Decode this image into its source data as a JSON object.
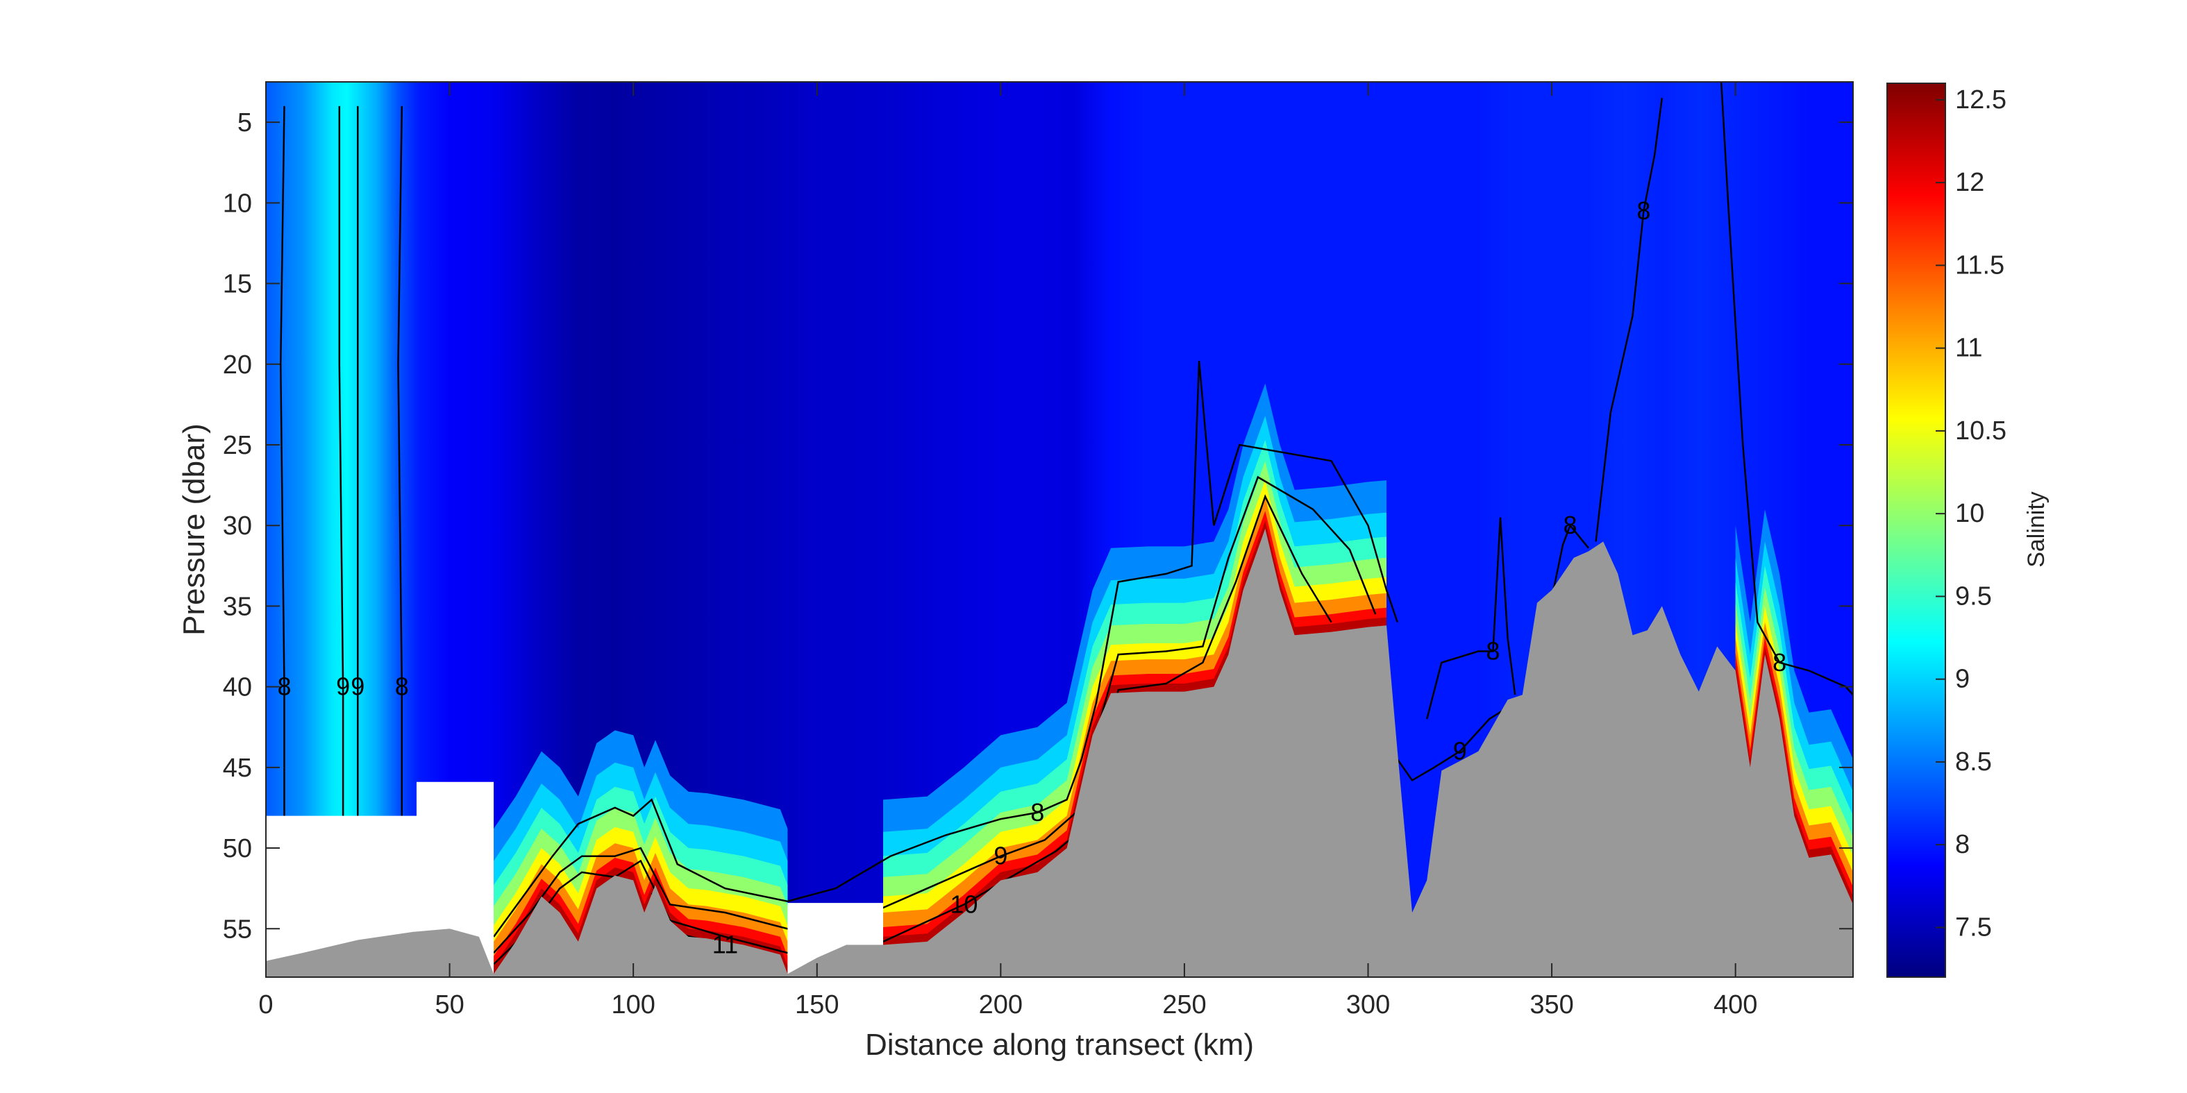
{
  "chart_data": {
    "type": "heatmap",
    "title": "",
    "xlabel": "Distance along transect (km)",
    "ylabel": "Pressure (dbar)",
    "colorbar_label": "Salinity",
    "colormap": "jet",
    "xlim": [
      0,
      432
    ],
    "ylim": [
      58,
      2.5
    ],
    "x_ticks": [
      0,
      50,
      100,
      150,
      200,
      250,
      300,
      350,
      400
    ],
    "y_ticks": [
      5,
      10,
      15,
      20,
      25,
      30,
      35,
      40,
      45,
      50,
      55
    ],
    "clim": [
      7.2,
      12.6
    ],
    "cbar_ticks": [
      "7.5",
      "8",
      "8.5",
      "9",
      "9.5",
      "10",
      "10.5",
      "11",
      "11.5",
      "12",
      "12.5"
    ],
    "grid": false,
    "bottom_fill_color": "#999999",
    "surface_profile": {
      "x": [
        0,
        10,
        18,
        22,
        30,
        36,
        42,
        50,
        62,
        75,
        85,
        95,
        105,
        115,
        125,
        135,
        142,
        150,
        160,
        170,
        180,
        190,
        200,
        210,
        220,
        230,
        240,
        250,
        260,
        265,
        270,
        280,
        290,
        300,
        305,
        312,
        320,
        330,
        340,
        350,
        360,
        370,
        380,
        390,
        400,
        410,
        420,
        432
      ],
      "salinity": [
        8.35,
        8.65,
        9.1,
        9.2,
        8.8,
        8.3,
        8.0,
        7.85,
        7.8,
        7.55,
        7.4,
        7.38,
        7.42,
        7.45,
        7.5,
        7.52,
        7.55,
        7.6,
        7.6,
        7.62,
        7.65,
        7.7,
        7.72,
        7.72,
        7.7,
        7.95,
        8.0,
        8.0,
        8.0,
        8.0,
        8.0,
        8.0,
        8.0,
        8.0,
        8.0,
        8.0,
        8.0,
        8.0,
        8.05,
        8.05,
        8.05,
        8.1,
        8.05,
        8.1,
        8.05,
        8.0,
        7.95,
        7.95
      ]
    },
    "seafloor": {
      "x": [
        0,
        10,
        25,
        40,
        50,
        58,
        62,
        68,
        75,
        80,
        85,
        90,
        95,
        100,
        103,
        106,
        110,
        115,
        120,
        130,
        140,
        142,
        150,
        158,
        168,
        180,
        190,
        200,
        210,
        218,
        222,
        225,
        230,
        240,
        250,
        258,
        262,
        266,
        272,
        276,
        280,
        290,
        300,
        305,
        308,
        312,
        316,
        320,
        330,
        338,
        342,
        346,
        350,
        356,
        360,
        364,
        368,
        372,
        376,
        380,
        385,
        390,
        395,
        400,
        404,
        408,
        412,
        416,
        420,
        426,
        432
      ],
      "pressure": [
        57.0,
        56.5,
        55.7,
        55.2,
        55.0,
        55.5,
        57.8,
        55.8,
        53.0,
        54.0,
        55.8,
        52.5,
        51.7,
        52.0,
        54.0,
        52.3,
        54.5,
        55.5,
        55.6,
        56.0,
        56.6,
        57.8,
        56.8,
        56.0,
        56.0,
        55.8,
        54.0,
        52.0,
        51.5,
        50.0,
        46.0,
        43.0,
        40.4,
        40.3,
        40.3,
        40.0,
        38.0,
        34.0,
        30.2,
        34.0,
        36.8,
        36.6,
        36.3,
        36.2,
        44.0,
        54.0,
        52.0,
        45.2,
        44.0,
        40.8,
        40.5,
        34.8,
        34.0,
        32.0,
        31.6,
        31.0,
        33.0,
        36.8,
        36.5,
        35.0,
        38.0,
        40.3,
        37.5,
        39.0,
        45.0,
        38.0,
        42.0,
        48.0,
        50.6,
        50.4,
        53.5
      ]
    },
    "data_gaps": [
      {
        "x": [
          0,
          41,
          41,
          62,
          62,
          0
        ],
        "pressure": [
          48.0,
          48.0,
          45.9,
          45.9,
          58,
          58
        ]
      },
      {
        "x": [
          142,
          168,
          168,
          142
        ],
        "pressure": [
          53.4,
          53.4,
          58,
          58
        ]
      }
    ],
    "contours": [
      {
        "level": "8",
        "x": [
          5,
          4,
          5,
          5
        ],
        "pressure": [
          4,
          20,
          40,
          48
        ]
      },
      {
        "level": "9",
        "x": [
          20,
          20,
          21,
          21
        ],
        "pressure": [
          4,
          20,
          40,
          48
        ]
      },
      {
        "level": "9",
        "x": [
          25,
          25,
          25,
          25
        ],
        "pressure": [
          4,
          20,
          40,
          48
        ]
      },
      {
        "level": "8",
        "x": [
          37,
          36,
          37,
          37
        ],
        "pressure": [
          4,
          20,
          40,
          48
        ]
      },
      {
        "level": "8",
        "x": [
          62,
          70,
          78,
          85,
          95,
          100,
          105,
          112,
          125,
          142,
          155,
          170,
          185,
          200,
          210,
          218,
          222,
          226,
          232,
          245,
          252,
          254,
          258,
          265,
          290,
          300,
          305,
          308
        ],
        "pressure": [
          55.5,
          53.0,
          50.5,
          48.5,
          47.5,
          48.0,
          47.0,
          51.0,
          52.5,
          53.3,
          52.5,
          50.5,
          49.2,
          48.2,
          47.8,
          47.0,
          44.5,
          41.0,
          33.5,
          33.0,
          32.5,
          19.8,
          30.0,
          25.0,
          26.0,
          30.0,
          34.0,
          36.0
        ]
      },
      {
        "level": "9",
        "x": [
          62,
          72,
          80,
          86,
          95,
          102,
          110,
          125,
          142,
          160,
          180,
          200,
          212,
          222,
          226,
          232,
          245,
          255,
          262,
          270,
          285,
          295,
          302
        ],
        "pressure": [
          56.5,
          54.0,
          51.5,
          50.5,
          50.5,
          50.0,
          53.5,
          54.0,
          55.0,
          54.5,
          52.5,
          50.5,
          49.5,
          47.5,
          43.0,
          38.0,
          37.8,
          37.5,
          32.0,
          27.0,
          29.0,
          31.5,
          35.5
        ]
      },
      {
        "level": "10",
        "x": [
          62,
          72,
          80,
          86,
          95,
          102,
          110,
          125,
          142,
          168,
          190,
          205,
          215,
          224,
          232,
          245,
          255,
          264,
          272,
          282,
          290
        ],
        "pressure": [
          57.2,
          55.0,
          52.5,
          51.5,
          51.8,
          50.8,
          54.5,
          55.5,
          56.5,
          55.8,
          53.5,
          51.5,
          50.2,
          48.5,
          40.2,
          39.8,
          38.5,
          33.5,
          28.2,
          33.0,
          36.0
        ]
      },
      {
        "level": "11",
        "x": [
          105,
          112,
          125,
          140
        ],
        "pressure": [
          52.8,
          55.3,
          56.0,
          57.0
        ]
      },
      {
        "level": "9",
        "x": [
          308,
          312,
          318,
          325,
          333,
          340,
          343
        ],
        "pressure": [
          44.5,
          45.8,
          45.0,
          44.0,
          42.0,
          41.0,
          40.7
        ]
      },
      {
        "level": "8",
        "x": [
          316,
          320,
          330,
          334,
          336,
          338,
          340
        ],
        "pressure": [
          42.0,
          38.5,
          37.8,
          37.8,
          29.5,
          37.0,
          40.5
        ]
      },
      {
        "level": "8",
        "x": [
          350,
          353,
          355,
          360
        ],
        "pressure": [
          34.5,
          31.2,
          30.0,
          31.4
        ]
      },
      {
        "level": "8",
        "x": [
          362,
          366,
          372,
          375,
          378,
          380
        ],
        "pressure": [
          31.0,
          23.0,
          17.0,
          10.5,
          7.0,
          3.5
        ]
      },
      {
        "level": "8",
        "x": [
          396,
          398,
          402,
          406,
          412,
          420,
          430,
          432
        ],
        "pressure": [
          2.0,
          10.0,
          25.0,
          36.0,
          38.5,
          39.0,
          40.0,
          40.5
        ]
      }
    ]
  },
  "plot_colors": {
    "axis_line": "#262626",
    "contour_line": "#000000",
    "seafloor": "#999999",
    "gap": "#ffffff"
  }
}
